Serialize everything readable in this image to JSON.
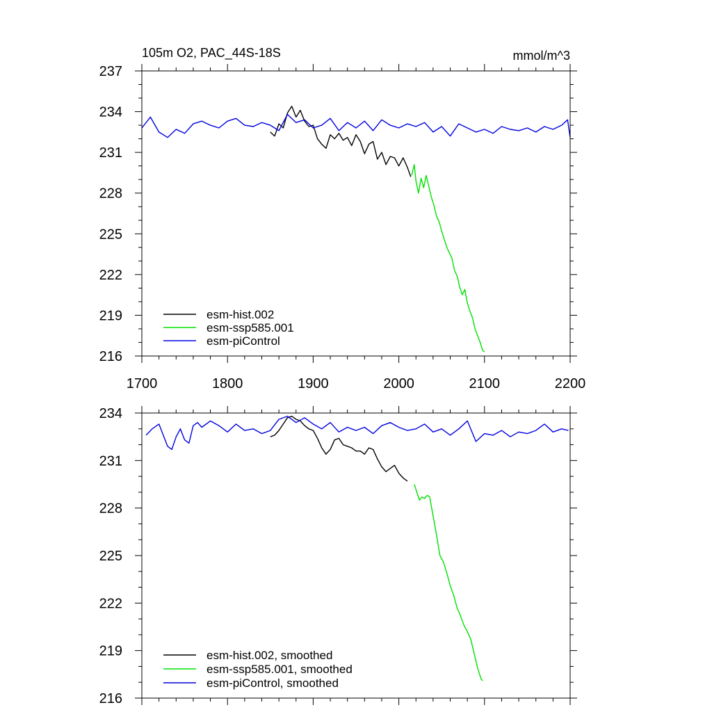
{
  "colors": {
    "hist": "#000000",
    "ssp": "#00e000",
    "pic": "#0000e0",
    "axis": "#000000"
  },
  "chart_data": [
    {
      "type": "line",
      "title": "105m O2, PAC_44S-18S",
      "units": "mmol/m^3",
      "xlim": [
        1700,
        2200
      ],
      "ylim": [
        216,
        237
      ],
      "x_ticks": [
        1700,
        1800,
        1900,
        2000,
        2100,
        2200
      ],
      "x_tick_labels": [
        "1700",
        "1800",
        "1900",
        "2000",
        "2100",
        "2200"
      ],
      "y_ticks": [
        216,
        219,
        222,
        225,
        228,
        231,
        234,
        237
      ],
      "y_tick_labels": [
        "216",
        "219",
        "222",
        "225",
        "228",
        "231",
        "234",
        "237"
      ],
      "grid": false,
      "legend_position": "bottom-left",
      "series": [
        {
          "name": "esm-hist.002",
          "color_key": "hist",
          "x": [
            1850,
            1855,
            1860,
            1865,
            1870,
            1875,
            1880,
            1885,
            1890,
            1895,
            1900,
            1905,
            1910,
            1915,
            1920,
            1925,
            1930,
            1935,
            1940,
            1945,
            1950,
            1955,
            1960,
            1965,
            1970,
            1975,
            1980,
            1985,
            1990,
            1995,
            2000,
            2005,
            2010,
            2014
          ],
          "y": [
            232.5,
            232.2,
            233.1,
            232.8,
            233.9,
            234.4,
            233.6,
            234.1,
            233.3,
            232.9,
            233.0,
            232.0,
            231.6,
            231.3,
            232.3,
            232.0,
            232.4,
            231.9,
            232.1,
            231.5,
            232.3,
            231.8,
            230.9,
            231.6,
            231.8,
            230.5,
            231.0,
            230.1,
            230.7,
            230.6,
            230.0,
            230.6,
            229.9,
            229.2
          ]
        },
        {
          "name": "esm-ssp585.001",
          "color_key": "ssp",
          "x": [
            2015,
            2018,
            2020,
            2023,
            2026,
            2029,
            2032,
            2035,
            2038,
            2041,
            2044,
            2047,
            2050,
            2053,
            2056,
            2059,
            2062,
            2065,
            2068,
            2071,
            2074,
            2077,
            2080,
            2083,
            2086,
            2089,
            2092,
            2095,
            2098,
            2100
          ],
          "y": [
            229.3,
            230.1,
            228.9,
            228.0,
            229.1,
            228.4,
            229.3,
            228.5,
            227.7,
            227.1,
            226.3,
            225.9,
            225.2,
            224.6,
            224.0,
            223.6,
            223.2,
            222.3,
            221.9,
            221.1,
            220.5,
            220.9,
            219.9,
            219.3,
            218.8,
            218.0,
            217.5,
            217.0,
            216.4,
            216.3
          ]
        },
        {
          "name": "esm-piControl",
          "color_key": "pic",
          "x": [
            1700,
            1710,
            1720,
            1730,
            1740,
            1750,
            1760,
            1770,
            1780,
            1790,
            1800,
            1810,
            1820,
            1830,
            1840,
            1850,
            1860,
            1870,
            1880,
            1890,
            1900,
            1910,
            1920,
            1930,
            1940,
            1950,
            1960,
            1970,
            1980,
            1990,
            2000,
            2010,
            2020,
            2030,
            2040,
            2050,
            2060,
            2070,
            2080,
            2090,
            2100,
            2110,
            2120,
            2130,
            2140,
            2150,
            2160,
            2170,
            2180,
            2190,
            2197,
            2200
          ],
          "y": [
            232.8,
            233.6,
            232.5,
            232.1,
            232.7,
            232.4,
            233.1,
            233.3,
            233.0,
            232.8,
            233.3,
            233.5,
            233.0,
            232.9,
            233.2,
            233.0,
            232.6,
            233.8,
            233.2,
            233.4,
            232.8,
            233.0,
            233.5,
            232.6,
            233.2,
            232.8,
            233.3,
            232.6,
            233.4,
            233.0,
            232.8,
            233.1,
            232.9,
            233.2,
            232.5,
            232.9,
            232.2,
            233.1,
            232.8,
            232.5,
            232.7,
            232.4,
            232.9,
            232.7,
            232.6,
            232.8,
            232.5,
            232.9,
            232.7,
            233.0,
            233.4,
            232.1
          ]
        }
      ]
    },
    {
      "type": "line",
      "title": "",
      "xlim": [
        1700,
        2200
      ],
      "ylim": [
        216,
        234
      ],
      "x_ticks": [
        1700,
        1800,
        1900,
        2000,
        2100,
        2200
      ],
      "y_ticks": [
        216,
        219,
        222,
        225,
        228,
        231,
        234
      ],
      "y_tick_labels": [
        "216",
        "219",
        "222",
        "225",
        "228",
        "231",
        "234"
      ],
      "grid": false,
      "legend_position": "bottom-left",
      "series": [
        {
          "name": "esm-hist.002, smoothed",
          "color_key": "hist",
          "x": [
            1850,
            1855,
            1860,
            1865,
            1870,
            1875,
            1880,
            1885,
            1890,
            1895,
            1900,
            1905,
            1910,
            1915,
            1920,
            1925,
            1930,
            1935,
            1940,
            1945,
            1950,
            1955,
            1960,
            1965,
            1970,
            1975,
            1980,
            1985,
            1990,
            1995,
            2000,
            2005,
            2010
          ],
          "y": [
            232.5,
            232.6,
            232.9,
            233.3,
            233.7,
            233.8,
            233.6,
            233.5,
            233.2,
            233.0,
            232.9,
            232.4,
            231.8,
            231.4,
            231.7,
            232.3,
            232.4,
            232.0,
            231.9,
            231.8,
            231.6,
            231.6,
            231.4,
            231.8,
            231.7,
            231.1,
            230.6,
            230.3,
            230.5,
            230.7,
            230.2,
            229.9,
            229.7
          ]
        },
        {
          "name": "esm-ssp585.001, smoothed",
          "color_key": "ssp",
          "x": [
            2018,
            2021,
            2024,
            2027,
            2030,
            2033,
            2036,
            2040,
            2044,
            2048,
            2052,
            2056,
            2060,
            2064,
            2068,
            2072,
            2076,
            2080,
            2084,
            2088,
            2092,
            2096,
            2098
          ],
          "y": [
            229.5,
            229.0,
            228.5,
            228.7,
            228.6,
            228.8,
            228.7,
            227.5,
            226.3,
            225.0,
            224.6,
            223.9,
            223.1,
            222.5,
            221.7,
            221.2,
            220.6,
            220.2,
            219.7,
            218.8,
            217.9,
            217.2,
            217.1
          ]
        },
        {
          "name": "esm-piControl, smoothed",
          "color_key": "pic",
          "x": [
            1705,
            1712,
            1720,
            1725,
            1730,
            1735,
            1740,
            1745,
            1750,
            1755,
            1760,
            1765,
            1770,
            1780,
            1790,
            1800,
            1810,
            1820,
            1830,
            1840,
            1850,
            1860,
            1870,
            1880,
            1890,
            1900,
            1910,
            1920,
            1930,
            1940,
            1950,
            1960,
            1970,
            1980,
            1990,
            2000,
            2010,
            2020,
            2030,
            2040,
            2050,
            2060,
            2070,
            2080,
            2090,
            2100,
            2110,
            2120,
            2130,
            2140,
            2150,
            2160,
            2170,
            2180,
            2190,
            2198
          ],
          "y": [
            232.6,
            233.0,
            233.3,
            232.6,
            231.9,
            231.7,
            232.5,
            233.0,
            232.3,
            232.1,
            233.2,
            233.4,
            233.1,
            233.5,
            233.2,
            232.8,
            233.3,
            232.9,
            233.0,
            232.7,
            232.9,
            233.6,
            233.8,
            233.4,
            233.7,
            233.3,
            233.0,
            233.4,
            232.8,
            233.1,
            232.9,
            233.1,
            232.7,
            233.2,
            233.4,
            233.1,
            232.9,
            233.0,
            233.3,
            232.8,
            233.0,
            232.6,
            233.0,
            233.5,
            232.2,
            232.7,
            232.6,
            232.9,
            232.5,
            232.8,
            232.7,
            232.9,
            233.3,
            232.8,
            233.0,
            232.9
          ]
        }
      ]
    }
  ]
}
